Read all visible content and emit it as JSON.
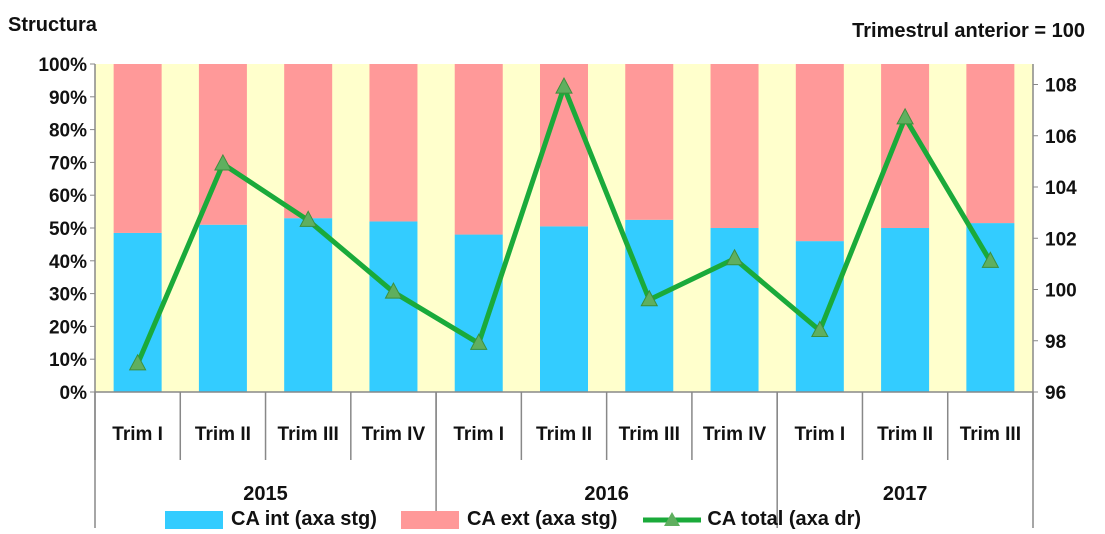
{
  "header": {
    "left_title": "Structura",
    "right_title": "Trimestrul anterior = 100"
  },
  "colors": {
    "ca_int": "#33CCFF",
    "ca_ext": "#FF9999",
    "ca_total": "#1AAA3A",
    "marker": "#5FAF5F",
    "plot_bg": "#FFFFCC"
  },
  "chart_data": {
    "type": "bar",
    "stacked": true,
    "categories": [
      "Trim I",
      "Trim II",
      "Trim III",
      "Trim IV",
      "Trim I",
      "Trim II",
      "Trim III",
      "Trim IV",
      "Trim I",
      "Trim II",
      "Trim III"
    ],
    "groups": [
      {
        "label": "2015",
        "count": 4
      },
      {
        "label": "2016",
        "count": 4
      },
      {
        "label": "2017",
        "count": 3
      }
    ],
    "series": [
      {
        "name": "CA int (axa stg)",
        "type": "bar",
        "axis": "left",
        "values": [
          48.5,
          51,
          53,
          52,
          48,
          50.5,
          52.5,
          50,
          46,
          50,
          51.5
        ]
      },
      {
        "name": "CA ext (axa stg)",
        "type": "bar",
        "axis": "left",
        "values": [
          51.5,
          49,
          47,
          48,
          52,
          49.5,
          47.5,
          50,
          54,
          50,
          48.5
        ]
      },
      {
        "name": "CA total (axa dr)",
        "type": "line",
        "axis": "right",
        "values": [
          97.1,
          104.9,
          102.7,
          99.9,
          97.9,
          107.9,
          99.6,
          101.2,
          98.4,
          106.7,
          101.1
        ]
      }
    ],
    "y_left": {
      "min": 0,
      "max": 100,
      "step": 10,
      "ticks": [
        "0%",
        "10%",
        "20%",
        "30%",
        "40%",
        "50%",
        "60%",
        "70%",
        "80%",
        "90%",
        "100%"
      ]
    },
    "y_right": {
      "min": 96,
      "max": 108.8,
      "ticks": [
        96,
        98,
        100,
        102,
        104,
        106,
        108
      ]
    },
    "legend_position": "bottom",
    "grid": false
  }
}
